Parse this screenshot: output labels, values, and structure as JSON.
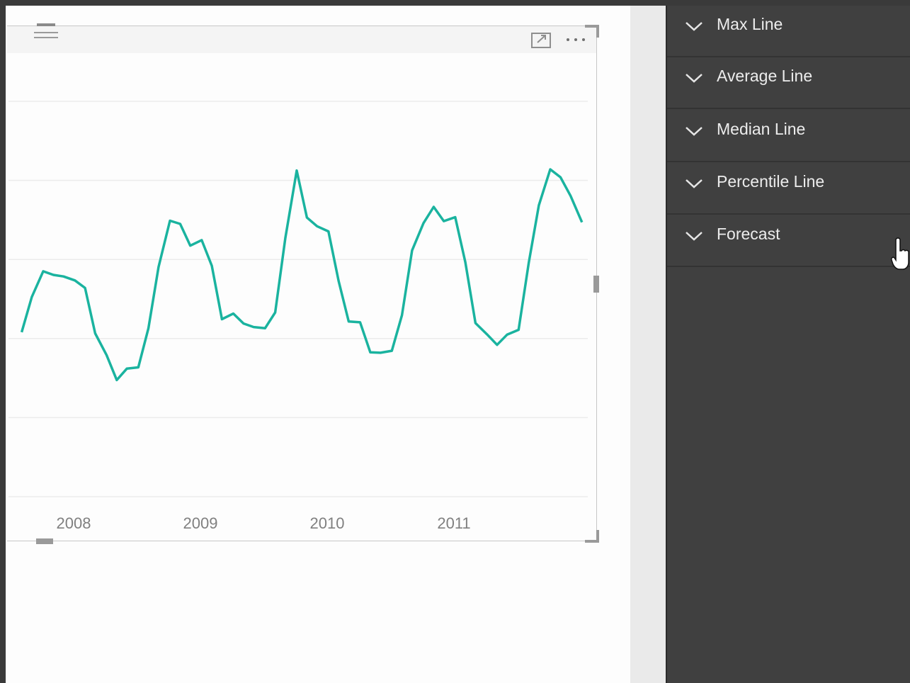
{
  "colors": {
    "series": "#1ab39f",
    "pane_bg": "#404040",
    "canvas_bg": "#fdfdfd"
  },
  "visual": {
    "header_icons": [
      "hamburger-icon",
      "focus-mode-icon",
      "more-options-icon"
    ]
  },
  "chart_data": {
    "type": "line",
    "x_tick_labels": [
      "2008",
      "2009",
      "2010",
      "2011"
    ],
    "grid": true,
    "y_gridlines": 6,
    "series": [
      {
        "color": "#1ab39f",
        "points": [
          [
            2007.59,
            4.16
          ],
          [
            2007.67,
            5.05
          ],
          [
            2007.76,
            5.7
          ],
          [
            2007.84,
            5.61
          ],
          [
            2007.92,
            5.57
          ],
          [
            2008.01,
            5.47
          ],
          [
            2008.09,
            5.28
          ],
          [
            2008.17,
            4.13
          ],
          [
            2008.26,
            3.58
          ],
          [
            2008.34,
            2.95
          ],
          [
            2008.42,
            3.24
          ],
          [
            2008.51,
            3.27
          ],
          [
            2008.59,
            4.26
          ],
          [
            2008.67,
            5.81
          ],
          [
            2008.76,
            6.98
          ],
          [
            2008.84,
            6.9
          ],
          [
            2008.92,
            6.35
          ],
          [
            2009.01,
            6.49
          ],
          [
            2009.09,
            5.84
          ],
          [
            2009.17,
            4.49
          ],
          [
            2009.26,
            4.63
          ],
          [
            2009.34,
            4.38
          ],
          [
            2009.42,
            4.29
          ],
          [
            2009.51,
            4.26
          ],
          [
            2009.59,
            4.66
          ],
          [
            2009.67,
            6.54
          ],
          [
            2009.76,
            8.25
          ],
          [
            2009.84,
            7.06
          ],
          [
            2009.92,
            6.84
          ],
          [
            2010.01,
            6.71
          ],
          [
            2010.09,
            5.46
          ],
          [
            2010.17,
            4.43
          ],
          [
            2010.26,
            4.41
          ],
          [
            2010.34,
            3.65
          ],
          [
            2010.42,
            3.64
          ],
          [
            2010.51,
            3.69
          ],
          [
            2010.59,
            4.59
          ],
          [
            2010.67,
            6.23
          ],
          [
            2010.76,
            6.92
          ],
          [
            2010.84,
            7.33
          ],
          [
            2010.92,
            6.97
          ],
          [
            2011.01,
            7.07
          ],
          [
            2011.09,
            5.93
          ],
          [
            2011.17,
            4.39
          ],
          [
            2011.26,
            4.11
          ],
          [
            2011.34,
            3.84
          ],
          [
            2011.42,
            4.1
          ],
          [
            2011.51,
            4.22
          ],
          [
            2011.59,
            5.91
          ],
          [
            2011.67,
            7.37
          ],
          [
            2011.76,
            8.28
          ],
          [
            2011.84,
            8.08
          ],
          [
            2011.92,
            7.61
          ],
          [
            2012.01,
            6.94
          ]
        ]
      }
    ]
  },
  "analytics_pane": {
    "items": [
      {
        "label": "Max Line",
        "icon": "chevron-down-icon"
      },
      {
        "label": "Average Line",
        "icon": "chevron-down-icon"
      },
      {
        "label": "Median Line",
        "icon": "chevron-down-icon"
      },
      {
        "label": "Percentile Line",
        "icon": "chevron-down-icon"
      },
      {
        "label": "Forecast",
        "icon": "chevron-down-icon"
      }
    ]
  }
}
